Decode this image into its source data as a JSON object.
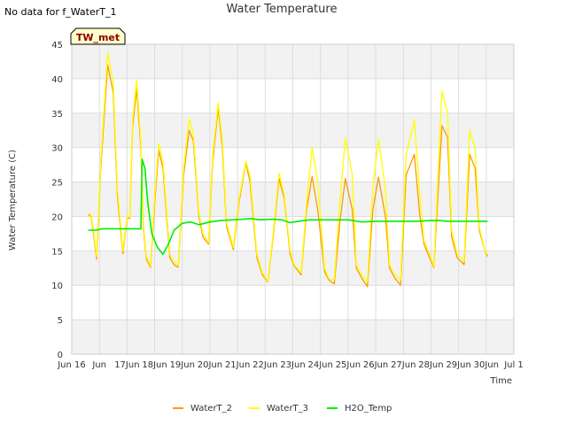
{
  "no_data_note": "No data for f_WaterT_1",
  "badge": "TW_met",
  "colors": {
    "WaterT_2": "#ff9900",
    "WaterT_3": "#ffff00",
    "H2O_Temp": "#00ee00",
    "band": "#f2f2f2",
    "grid": "#dddddd",
    "badge_fill": "#ffffcc"
  },
  "chart_data": {
    "type": "line",
    "title": "Water Temperature",
    "xlabel": "Time",
    "ylabel": "Water Temperature (C)",
    "xlim": [
      15,
      31
    ],
    "ylim": [
      0,
      45
    ],
    "x_ticks": [
      15,
      16,
      17,
      18,
      19,
      20,
      21,
      22,
      23,
      24,
      25,
      26,
      27,
      28,
      29,
      30,
      31
    ],
    "x_tick_labels": [
      "Jun 16",
      "Jun",
      "17Jun",
      "18Jun",
      "19Jun",
      "20Jun",
      "21Jun",
      "22Jun",
      "23Jun",
      "24Jun",
      "25Jun",
      "26Jun",
      "27Jun",
      "28Jun",
      "29Jun",
      "30Jun",
      "Jul 1"
    ],
    "y_ticks": [
      0,
      5,
      10,
      15,
      20,
      25,
      30,
      35,
      40,
      45
    ],
    "grid": true,
    "legend_position": "bottom",
    "series": [
      {
        "name": "WaterT_2",
        "x": [
          15.6,
          15.7,
          15.8,
          15.9,
          16.05,
          16.3,
          16.5,
          16.65,
          16.85,
          17.0,
          17.1,
          17.2,
          17.35,
          17.5,
          17.6,
          17.7,
          17.85,
          18.0,
          18.15,
          18.3,
          18.55,
          18.7,
          18.85,
          19.05,
          19.25,
          19.4,
          19.6,
          19.75,
          19.95,
          20.1,
          20.3,
          20.45,
          20.6,
          20.85,
          21.05,
          21.3,
          21.45,
          21.7,
          21.9,
          22.1,
          22.3,
          22.5,
          22.7,
          22.9,
          23.05,
          23.3,
          23.5,
          23.7,
          23.9,
          24.15,
          24.3,
          24.5,
          24.7,
          24.9,
          25.15,
          25.3,
          25.5,
          25.7,
          25.9,
          26.1,
          26.35,
          26.5,
          26.7,
          26.9,
          27.1,
          27.4,
          27.6,
          27.75,
          27.95,
          28.1,
          28.4,
          28.6,
          28.75,
          28.95,
          29.2,
          29.4,
          29.6,
          29.75,
          29.95,
          30.05
        ],
        "values": [
          20.3,
          20.0,
          17.0,
          13.8,
          27.0,
          42.0,
          38.0,
          23.0,
          14.6,
          19.8,
          19.7,
          33.0,
          38.5,
          30.0,
          18.0,
          13.8,
          12.6,
          22.0,
          29.6,
          27.0,
          14.0,
          13.0,
          12.6,
          26.0,
          32.5,
          31.0,
          20.0,
          17.0,
          16.0,
          28.0,
          35.8,
          30.0,
          18.5,
          15.2,
          22.0,
          27.8,
          25.0,
          14.0,
          11.5,
          10.5,
          17.5,
          25.5,
          22.5,
          14.5,
          12.8,
          11.5,
          21.0,
          25.8,
          21.0,
          12.0,
          10.8,
          10.2,
          19.0,
          25.5,
          21.0,
          12.5,
          11.0,
          9.8,
          21.0,
          25.7,
          20.0,
          12.5,
          11.0,
          10.0,
          26.0,
          29.0,
          20.0,
          16.0,
          14.0,
          12.6,
          33.2,
          31.5,
          17.0,
          14.0,
          13.0,
          29.0,
          27.0,
          18.0,
          15.0,
          14.2
        ]
      },
      {
        "name": "WaterT_3",
        "x": [
          15.6,
          15.7,
          15.8,
          15.9,
          16.05,
          16.3,
          16.5,
          16.65,
          16.85,
          17.0,
          17.1,
          17.2,
          17.35,
          17.5,
          17.6,
          17.7,
          17.85,
          18.0,
          18.15,
          18.3,
          18.55,
          18.7,
          18.85,
          19.05,
          19.25,
          19.4,
          19.6,
          19.75,
          19.95,
          20.1,
          20.3,
          20.45,
          20.6,
          20.85,
          21.05,
          21.3,
          21.45,
          21.7,
          21.9,
          22.1,
          22.3,
          22.5,
          22.7,
          22.9,
          23.05,
          23.3,
          23.5,
          23.7,
          23.9,
          24.15,
          24.3,
          24.5,
          24.7,
          24.9,
          25.15,
          25.3,
          25.5,
          25.7,
          25.9,
          26.1,
          26.35,
          26.5,
          26.7,
          26.9,
          27.1,
          27.4,
          27.6,
          27.75,
          27.95,
          28.1,
          28.4,
          28.6,
          28.75,
          28.95,
          29.2,
          29.4,
          29.6,
          29.75,
          29.95,
          30.05
        ],
        "values": [
          20.5,
          20.2,
          17.5,
          14.2,
          28.0,
          43.8,
          39.5,
          24.0,
          15.0,
          20.0,
          19.9,
          34.0,
          39.8,
          31.0,
          18.5,
          14.2,
          12.8,
          23.0,
          30.6,
          28.0,
          14.5,
          13.5,
          12.8,
          27.0,
          34.2,
          32.0,
          20.5,
          17.5,
          16.2,
          29.0,
          36.5,
          31.0,
          19.0,
          15.5,
          22.5,
          28.0,
          26.0,
          14.5,
          11.8,
          10.6,
          18.0,
          26.3,
          23.0,
          15.0,
          13.0,
          11.8,
          22.0,
          30.0,
          25.0,
          12.5,
          11.0,
          10.8,
          22.0,
          31.4,
          26.0,
          13.0,
          11.5,
          10.5,
          24.0,
          31.2,
          24.0,
          13.0,
          11.5,
          10.8,
          29.0,
          34.0,
          23.0,
          16.5,
          14.5,
          12.8,
          38.2,
          35.0,
          18.0,
          14.5,
          13.5,
          32.5,
          30.0,
          18.5,
          15.0,
          14.5
        ]
      },
      {
        "name": "H2O_Temp",
        "x": [
          15.6,
          15.9,
          16.1,
          16.5,
          17.0,
          17.5,
          17.55,
          17.65,
          17.75,
          17.9,
          18.1,
          18.3,
          18.5,
          18.7,
          19.0,
          19.3,
          19.6,
          20.0,
          20.4,
          20.8,
          21.2,
          21.5,
          21.8,
          22.3,
          22.6,
          22.9,
          23.2,
          23.6,
          24.0,
          24.5,
          25.0,
          25.5,
          26.0,
          26.5,
          27.0,
          27.5,
          28.0,
          28.3,
          28.6,
          29.0,
          29.5,
          30.0,
          30.05
        ],
        "values": [
          18.0,
          18.0,
          18.2,
          18.2,
          18.2,
          18.2,
          28.3,
          27.0,
          22.0,
          17.5,
          15.5,
          14.5,
          16.0,
          18.0,
          19.0,
          19.2,
          18.8,
          19.2,
          19.4,
          19.5,
          19.6,
          19.7,
          19.5,
          19.6,
          19.5,
          19.1,
          19.3,
          19.5,
          19.5,
          19.5,
          19.5,
          19.2,
          19.3,
          19.3,
          19.3,
          19.3,
          19.4,
          19.4,
          19.3,
          19.3,
          19.3,
          19.3,
          19.3
        ]
      }
    ]
  }
}
